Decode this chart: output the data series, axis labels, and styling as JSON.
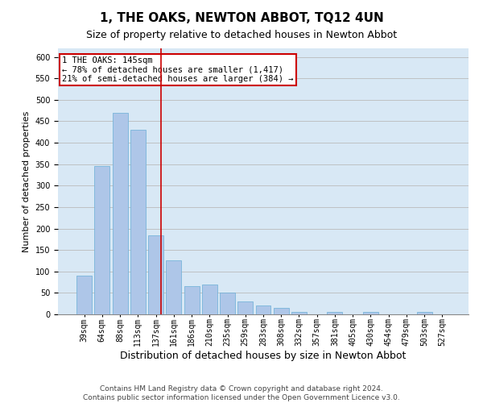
{
  "title": "1, THE OAKS, NEWTON ABBOT, TQ12 4UN",
  "subtitle": "Size of property relative to detached houses in Newton Abbot",
  "xlabel": "Distribution of detached houses by size in Newton Abbot",
  "ylabel": "Number of detached properties",
  "categories": [
    "39sqm",
    "64sqm",
    "88sqm",
    "113sqm",
    "137sqm",
    "161sqm",
    "186sqm",
    "210sqm",
    "235sqm",
    "259sqm",
    "283sqm",
    "308sqm",
    "332sqm",
    "357sqm",
    "381sqm",
    "405sqm",
    "430sqm",
    "454sqm",
    "479sqm",
    "503sqm",
    "527sqm"
  ],
  "values": [
    90,
    345,
    470,
    430,
    185,
    125,
    65,
    70,
    50,
    30,
    20,
    15,
    5,
    0,
    5,
    0,
    5,
    0,
    0,
    5,
    0
  ],
  "bar_color": "#aec6e8",
  "bar_edge_color": "#6aaed6",
  "bar_width": 0.85,
  "vline_color": "#cc0000",
  "vline_position": 4.3,
  "annotation_text": "1 THE OAKS: 145sqm\n← 78% of detached houses are smaller (1,417)\n21% of semi-detached houses are larger (384) →",
  "annotation_box_color": "#ffffff",
  "annotation_box_edge": "#cc0000",
  "ylim": [
    0,
    620
  ],
  "yticks": [
    0,
    50,
    100,
    150,
    200,
    250,
    300,
    350,
    400,
    450,
    500,
    550,
    600
  ],
  "grid_color": "#bbbbbb",
  "bg_color": "#d8e8f5",
  "footer1": "Contains HM Land Registry data © Crown copyright and database right 2024.",
  "footer2": "Contains public sector information licensed under the Open Government Licence v3.0.",
  "title_fontsize": 11,
  "subtitle_fontsize": 9,
  "xlabel_fontsize": 9,
  "ylabel_fontsize": 8,
  "tick_fontsize": 7,
  "footer_fontsize": 6.5
}
